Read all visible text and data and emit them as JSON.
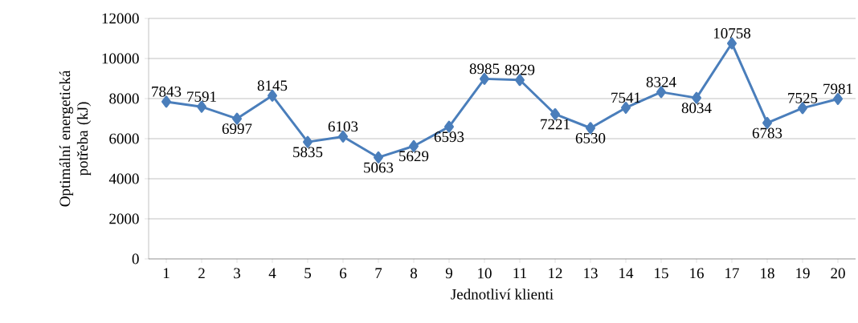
{
  "chart_data": {
    "type": "line",
    "xlabel": "Jednotliví klienti",
    "ylabel": "Optimální energetická potřeba (kJ)",
    "categories": [
      "1",
      "2",
      "3",
      "4",
      "5",
      "6",
      "7",
      "8",
      "9",
      "10",
      "11",
      "12",
      "13",
      "14",
      "15",
      "16",
      "17",
      "18",
      "19",
      "20"
    ],
    "series": [
      {
        "color": "#4a7ebb",
        "values": [
          7843,
          7591,
          6997,
          8145,
          5835,
          6103,
          5063,
          5629,
          6593,
          8985,
          8929,
          7221,
          6530,
          7541,
          8324,
          8034,
          10758,
          6783,
          7525,
          7981
        ]
      }
    ],
    "ylim": [
      0,
      12000
    ],
    "yticks": [
      0,
      2000,
      4000,
      6000,
      8000,
      10000,
      12000
    ],
    "grid": "y",
    "marker": "diamond",
    "line_style": "solid",
    "data_labels": true
  }
}
